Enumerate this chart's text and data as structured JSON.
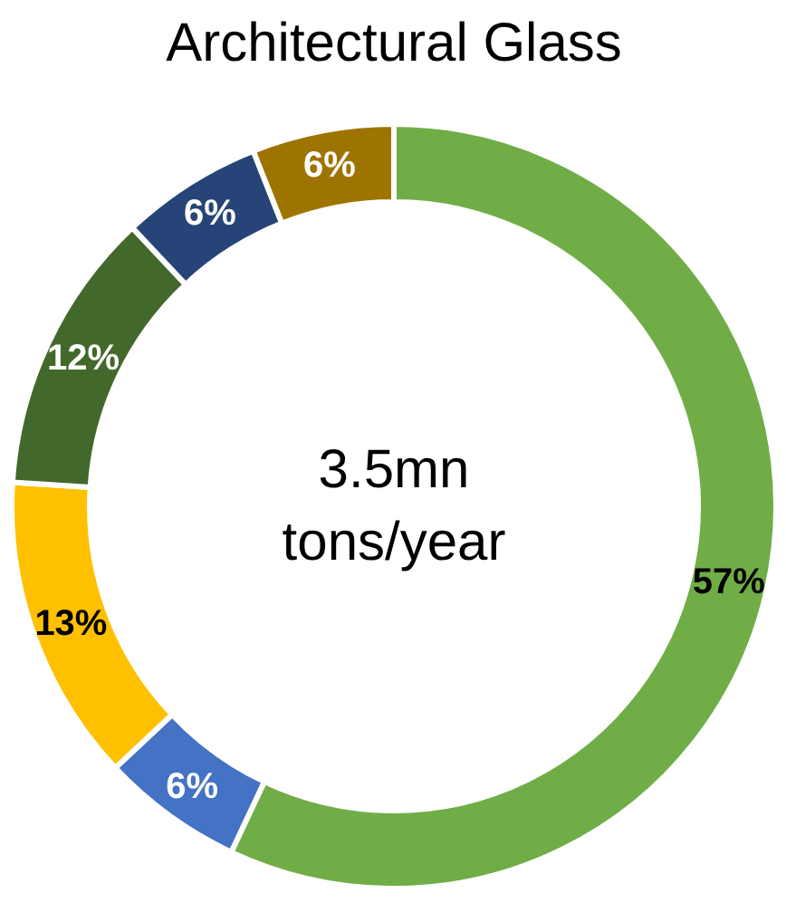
{
  "chart_data": {
    "type": "donut",
    "title": "Architectural Glass",
    "categories": [
      null,
      null,
      null,
      null,
      null,
      null
    ],
    "values": [
      57,
      6,
      13,
      12,
      6,
      6
    ],
    "colors": [
      "#70ad47",
      "#4472c4",
      "#ffc000",
      "#43682b",
      "#264478",
      "#9e7400"
    ],
    "value_labels": [
      "57%",
      "6%",
      "13%",
      "12%",
      "6%",
      "6%"
    ],
    "annotations": [
      "3.5mn\ntons/year"
    ]
  }
}
